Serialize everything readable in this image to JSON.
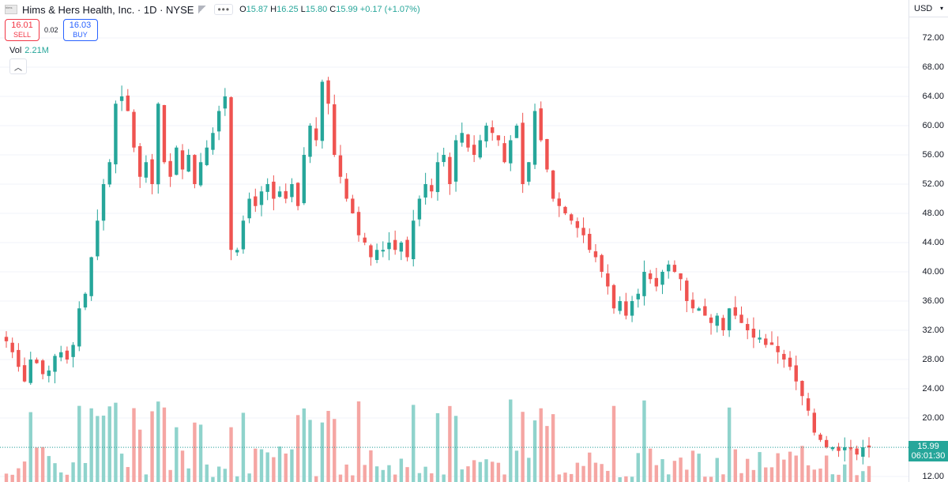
{
  "header": {
    "symbol_title": "Hims & Hers Health, Inc. · 1D · NYSE",
    "logo_text": "hims",
    "more_icon": "more-dots-icon",
    "ohlc": [
      {
        "key": "O",
        "value": "15.87"
      },
      {
        "key": "H",
        "value": "16.25"
      },
      {
        "key": "L",
        "value": "15.80"
      },
      {
        "key": "C",
        "value": "15.99"
      },
      {
        "key": "",
        "value": "+0.17 (+1.07%)"
      }
    ]
  },
  "trade": {
    "sell_price": "16.01",
    "sell_label": "SELL",
    "spread": "0.02",
    "buy_price": "16.03",
    "buy_label": "BUY"
  },
  "volume": {
    "label": "Vol",
    "value": "2.21M"
  },
  "collapse_icon": "chevron-up-icon",
  "price_axis": {
    "currency": "USD",
    "ticks": [
      "72.00",
      "68.00",
      "64.00",
      "60.00",
      "56.00",
      "52.00",
      "48.00",
      "44.00",
      "40.00",
      "36.00",
      "32.00",
      "28.00",
      "24.00",
      "20.00",
      "16.00",
      "12.00"
    ],
    "last_price": "15.99",
    "countdown": "06:01:30"
  },
  "colors": {
    "up": "#26a69a",
    "down": "#ef5350",
    "up_vol": "#8fd3cc",
    "down_vol": "#f5a6a3",
    "grid": "#f0f3fa"
  },
  "chart_data": {
    "type": "candlestick",
    "ylim": [
      12,
      72
    ],
    "y_ticks": [
      72,
      68,
      64,
      60,
      56,
      52,
      48,
      44,
      40,
      36,
      32,
      28,
      24,
      20,
      16,
      12
    ],
    "last_close": 15.99,
    "approx_closes": [
      30.5,
      29,
      27,
      25,
      28,
      27.5,
      26,
      26.5,
      28.5,
      29,
      28,
      30,
      35,
      37,
      42,
      47,
      52,
      55,
      63,
      64,
      62,
      57,
      53,
      55,
      52,
      63,
      55,
      53,
      57,
      54,
      56,
      52,
      55,
      57,
      59,
      62,
      64,
      43,
      43,
      47,
      50,
      49,
      51,
      52,
      50,
      51,
      50,
      52,
      49,
      56,
      60,
      58,
      66,
      63,
      56,
      53,
      50,
      48,
      45,
      44,
      42,
      43,
      43,
      44,
      43,
      44,
      42,
      47,
      50,
      52,
      51,
      55,
      56,
      52,
      58,
      59,
      57,
      56,
      58,
      60,
      59,
      58,
      55,
      58,
      60,
      52,
      55,
      62,
      58,
      54,
      50,
      49,
      48,
      47,
      46,
      45,
      43,
      42,
      40,
      38,
      35,
      36,
      34,
      36,
      37,
      40,
      39,
      38,
      40,
      41,
      40,
      39,
      36,
      35,
      35,
      34,
      33,
      34,
      32,
      35,
      34,
      33,
      32,
      31,
      31,
      30,
      30,
      29,
      28,
      27,
      25,
      23,
      21,
      18,
      17,
      16,
      16,
      15.5,
      16,
      15.8,
      15,
      16,
      15.99
    ]
  }
}
